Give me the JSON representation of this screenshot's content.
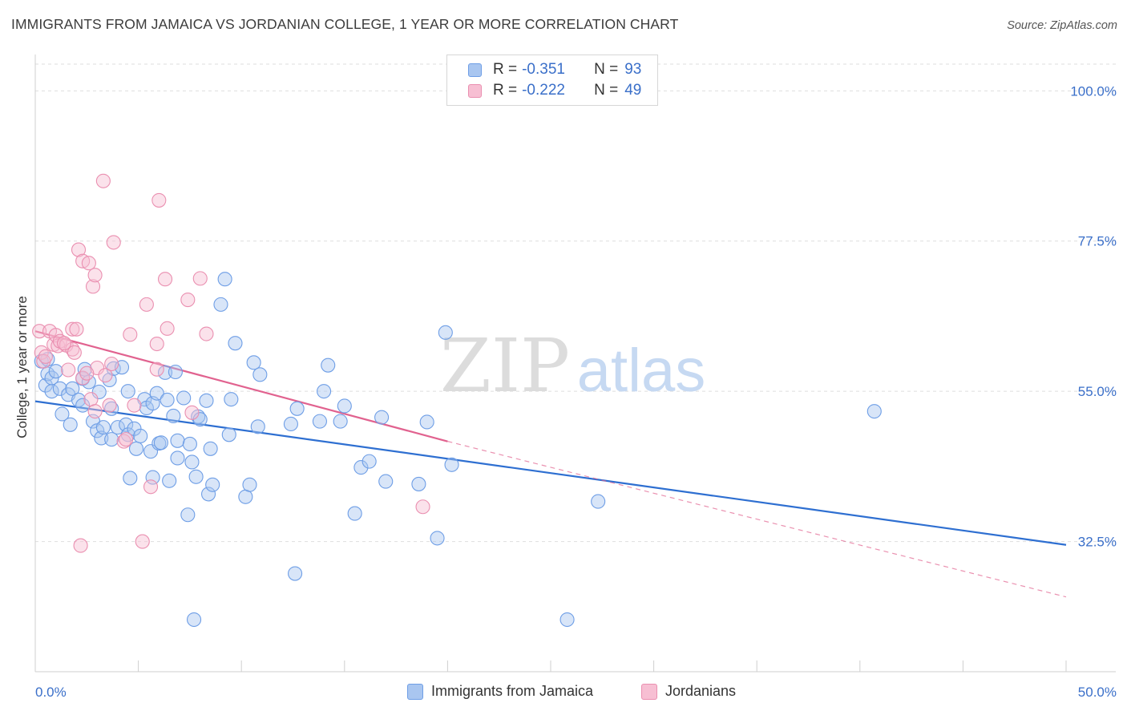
{
  "title": "IMMIGRANTS FROM JAMAICA VS JORDANIAN COLLEGE, 1 YEAR OR MORE CORRELATION CHART",
  "source": "Source: ZipAtlas.com",
  "watermark": {
    "zip": "ZIP",
    "atlas": "atlas"
  },
  "legend": {
    "rows": [
      {
        "r_label": "R =",
        "r_value": "-0.351",
        "n_label": "N =",
        "n_value": "93",
        "color": "#a9c6f0",
        "stroke": "#6e9ee6"
      },
      {
        "r_label": "R =",
        "r_value": "-0.222",
        "n_label": "N =",
        "n_value": "49",
        "color": "#f7bfd3",
        "stroke": "#ea8fb0"
      }
    ]
  },
  "bottom_legend": [
    {
      "label": "Immigrants from Jamaica",
      "color": "#a9c6f0",
      "stroke": "#6e9ee6"
    },
    {
      "label": "Jordanians",
      "color": "#f7bfd3",
      "stroke": "#ea8fb0"
    }
  ],
  "chart_data": {
    "type": "scatter",
    "xlabel": "",
    "ylabel": "College, 1 year or more",
    "x_tick_labels": [
      "0.0%",
      "50.0%"
    ],
    "y_tick_labels": [
      "100.0%",
      "77.5%",
      "55.0%",
      "32.5%"
    ],
    "y_ticks": [
      100.0,
      77.5,
      55.0,
      32.5
    ],
    "xlim": [
      0,
      50
    ],
    "ylim": [
      13,
      104
    ],
    "series": [
      {
        "name": "Immigrants from Jamaica",
        "color": "#6e9ee6",
        "fill": "#a9c6f0",
        "trend": {
          "x": [
            0,
            50
          ],
          "y": [
            53.5,
            32.0
          ],
          "style": "solid",
          "color": "#2e6fd1"
        },
        "points": [
          [
            0.3,
            59.5
          ],
          [
            0.5,
            55.9
          ],
          [
            0.6,
            57.6
          ],
          [
            0.8,
            55.0
          ],
          [
            0.8,
            57.0
          ],
          [
            1.0,
            58.0
          ],
          [
            1.2,
            55.4
          ],
          [
            1.3,
            51.6
          ],
          [
            1.6,
            54.5
          ],
          [
            1.7,
            50.0
          ],
          [
            1.8,
            55.4
          ],
          [
            2.1,
            53.7
          ],
          [
            2.3,
            52.9
          ],
          [
            2.3,
            56.9
          ],
          [
            2.4,
            58.3
          ],
          [
            2.6,
            56.4
          ],
          [
            2.8,
            50.5
          ],
          [
            3.0,
            49.1
          ],
          [
            3.1,
            54.9
          ],
          [
            3.2,
            48.0
          ],
          [
            3.3,
            49.6
          ],
          [
            3.6,
            56.7
          ],
          [
            3.7,
            52.4
          ],
          [
            3.8,
            58.4
          ],
          [
            3.7,
            47.8
          ],
          [
            4.0,
            49.6
          ],
          [
            4.2,
            58.6
          ],
          [
            4.4,
            50.0
          ],
          [
            4.5,
            48.5
          ],
          [
            4.5,
            55.0
          ],
          [
            4.6,
            42.0
          ],
          [
            4.8,
            49.4
          ],
          [
            4.9,
            46.4
          ],
          [
            5.1,
            48.3
          ],
          [
            5.3,
            53.8
          ],
          [
            5.4,
            52.5
          ],
          [
            5.6,
            46.0
          ],
          [
            5.7,
            53.2
          ],
          [
            5.7,
            42.1
          ],
          [
            5.9,
            54.7
          ],
          [
            6.0,
            47.2
          ],
          [
            6.1,
            47.3
          ],
          [
            6.3,
            57.8
          ],
          [
            6.4,
            53.7
          ],
          [
            6.5,
            41.6
          ],
          [
            6.7,
            51.3
          ],
          [
            6.8,
            57.9
          ],
          [
            6.9,
            47.6
          ],
          [
            6.9,
            45.0
          ],
          [
            7.2,
            54.0
          ],
          [
            7.4,
            36.5
          ],
          [
            7.5,
            47.1
          ],
          [
            7.6,
            44.4
          ],
          [
            7.8,
            42.2
          ],
          [
            7.9,
            51.2
          ],
          [
            8.0,
            50.8
          ],
          [
            8.3,
            53.6
          ],
          [
            8.4,
            39.6
          ],
          [
            8.5,
            46.4
          ],
          [
            8.6,
            41.0
          ],
          [
            9.0,
            68.0
          ],
          [
            9.2,
            71.8
          ],
          [
            9.4,
            48.5
          ],
          [
            9.5,
            53.8
          ],
          [
            9.7,
            62.2
          ],
          [
            10.2,
            39.2
          ],
          [
            10.4,
            41.0
          ],
          [
            10.6,
            59.3
          ],
          [
            10.8,
            49.7
          ],
          [
            10.9,
            57.5
          ],
          [
            12.4,
            50.1
          ],
          [
            12.6,
            27.7
          ],
          [
            12.7,
            52.4
          ],
          [
            13.8,
            50.5
          ],
          [
            14.0,
            55.0
          ],
          [
            14.2,
            58.9
          ],
          [
            14.8,
            50.5
          ],
          [
            15.0,
            52.8
          ],
          [
            15.5,
            36.7
          ],
          [
            15.8,
            43.6
          ],
          [
            16.2,
            44.5
          ],
          [
            16.8,
            51.1
          ],
          [
            17.0,
            41.5
          ],
          [
            18.6,
            41.1
          ],
          [
            19.0,
            50.4
          ],
          [
            19.5,
            33.0
          ],
          [
            19.9,
            63.8
          ],
          [
            20.2,
            44.0
          ],
          [
            25.8,
            20.8
          ],
          [
            27.3,
            38.5
          ],
          [
            40.7,
            52.0
          ],
          [
            7.7,
            20.8
          ],
          [
            0.6,
            59.8
          ]
        ]
      },
      {
        "name": "Jordanians",
        "color": "#ea8fb0",
        "fill": "#f7bfd3",
        "trend": {
          "x": [
            0,
            20
          ],
          "y": [
            64.0,
            47.5
          ],
          "style": "solid",
          "color": "#e1628f",
          "dash_to": {
            "x": 50,
            "y": 24.2
          }
        },
        "points": [
          [
            0.2,
            64.0
          ],
          [
            0.3,
            60.8
          ],
          [
            0.4,
            59.5
          ],
          [
            0.5,
            60.2
          ],
          [
            0.7,
            64.0
          ],
          [
            0.9,
            62.0
          ],
          [
            1.0,
            63.4
          ],
          [
            1.1,
            61.8
          ],
          [
            1.2,
            62.5
          ],
          [
            1.5,
            61.9
          ],
          [
            1.6,
            58.2
          ],
          [
            1.8,
            61.3
          ],
          [
            1.8,
            64.3
          ],
          [
            1.9,
            60.8
          ],
          [
            2.0,
            64.3
          ],
          [
            2.1,
            76.2
          ],
          [
            2.2,
            31.9
          ],
          [
            2.3,
            74.5
          ],
          [
            2.3,
            57.0
          ],
          [
            2.6,
            74.2
          ],
          [
            2.7,
            53.8
          ],
          [
            2.8,
            70.7
          ],
          [
            2.9,
            52.0
          ],
          [
            2.9,
            72.4
          ],
          [
            3.0,
            58.5
          ],
          [
            3.3,
            86.5
          ],
          [
            3.4,
            57.4
          ],
          [
            3.6,
            52.9
          ],
          [
            3.7,
            59.1
          ],
          [
            3.8,
            77.3
          ],
          [
            4.3,
            47.5
          ],
          [
            4.4,
            47.8
          ],
          [
            4.6,
            63.5
          ],
          [
            4.8,
            52.9
          ],
          [
            5.2,
            32.5
          ],
          [
            5.4,
            68.0
          ],
          [
            5.6,
            40.7
          ],
          [
            5.9,
            62.1
          ],
          [
            5.9,
            58.3
          ],
          [
            6.0,
            83.6
          ],
          [
            6.3,
            71.8
          ],
          [
            6.4,
            64.4
          ],
          [
            7.4,
            68.7
          ],
          [
            7.6,
            51.8
          ],
          [
            8.0,
            71.9
          ],
          [
            8.3,
            63.6
          ],
          [
            18.8,
            37.7
          ],
          [
            1.4,
            62.2
          ],
          [
            2.5,
            57.7
          ]
        ]
      }
    ]
  }
}
